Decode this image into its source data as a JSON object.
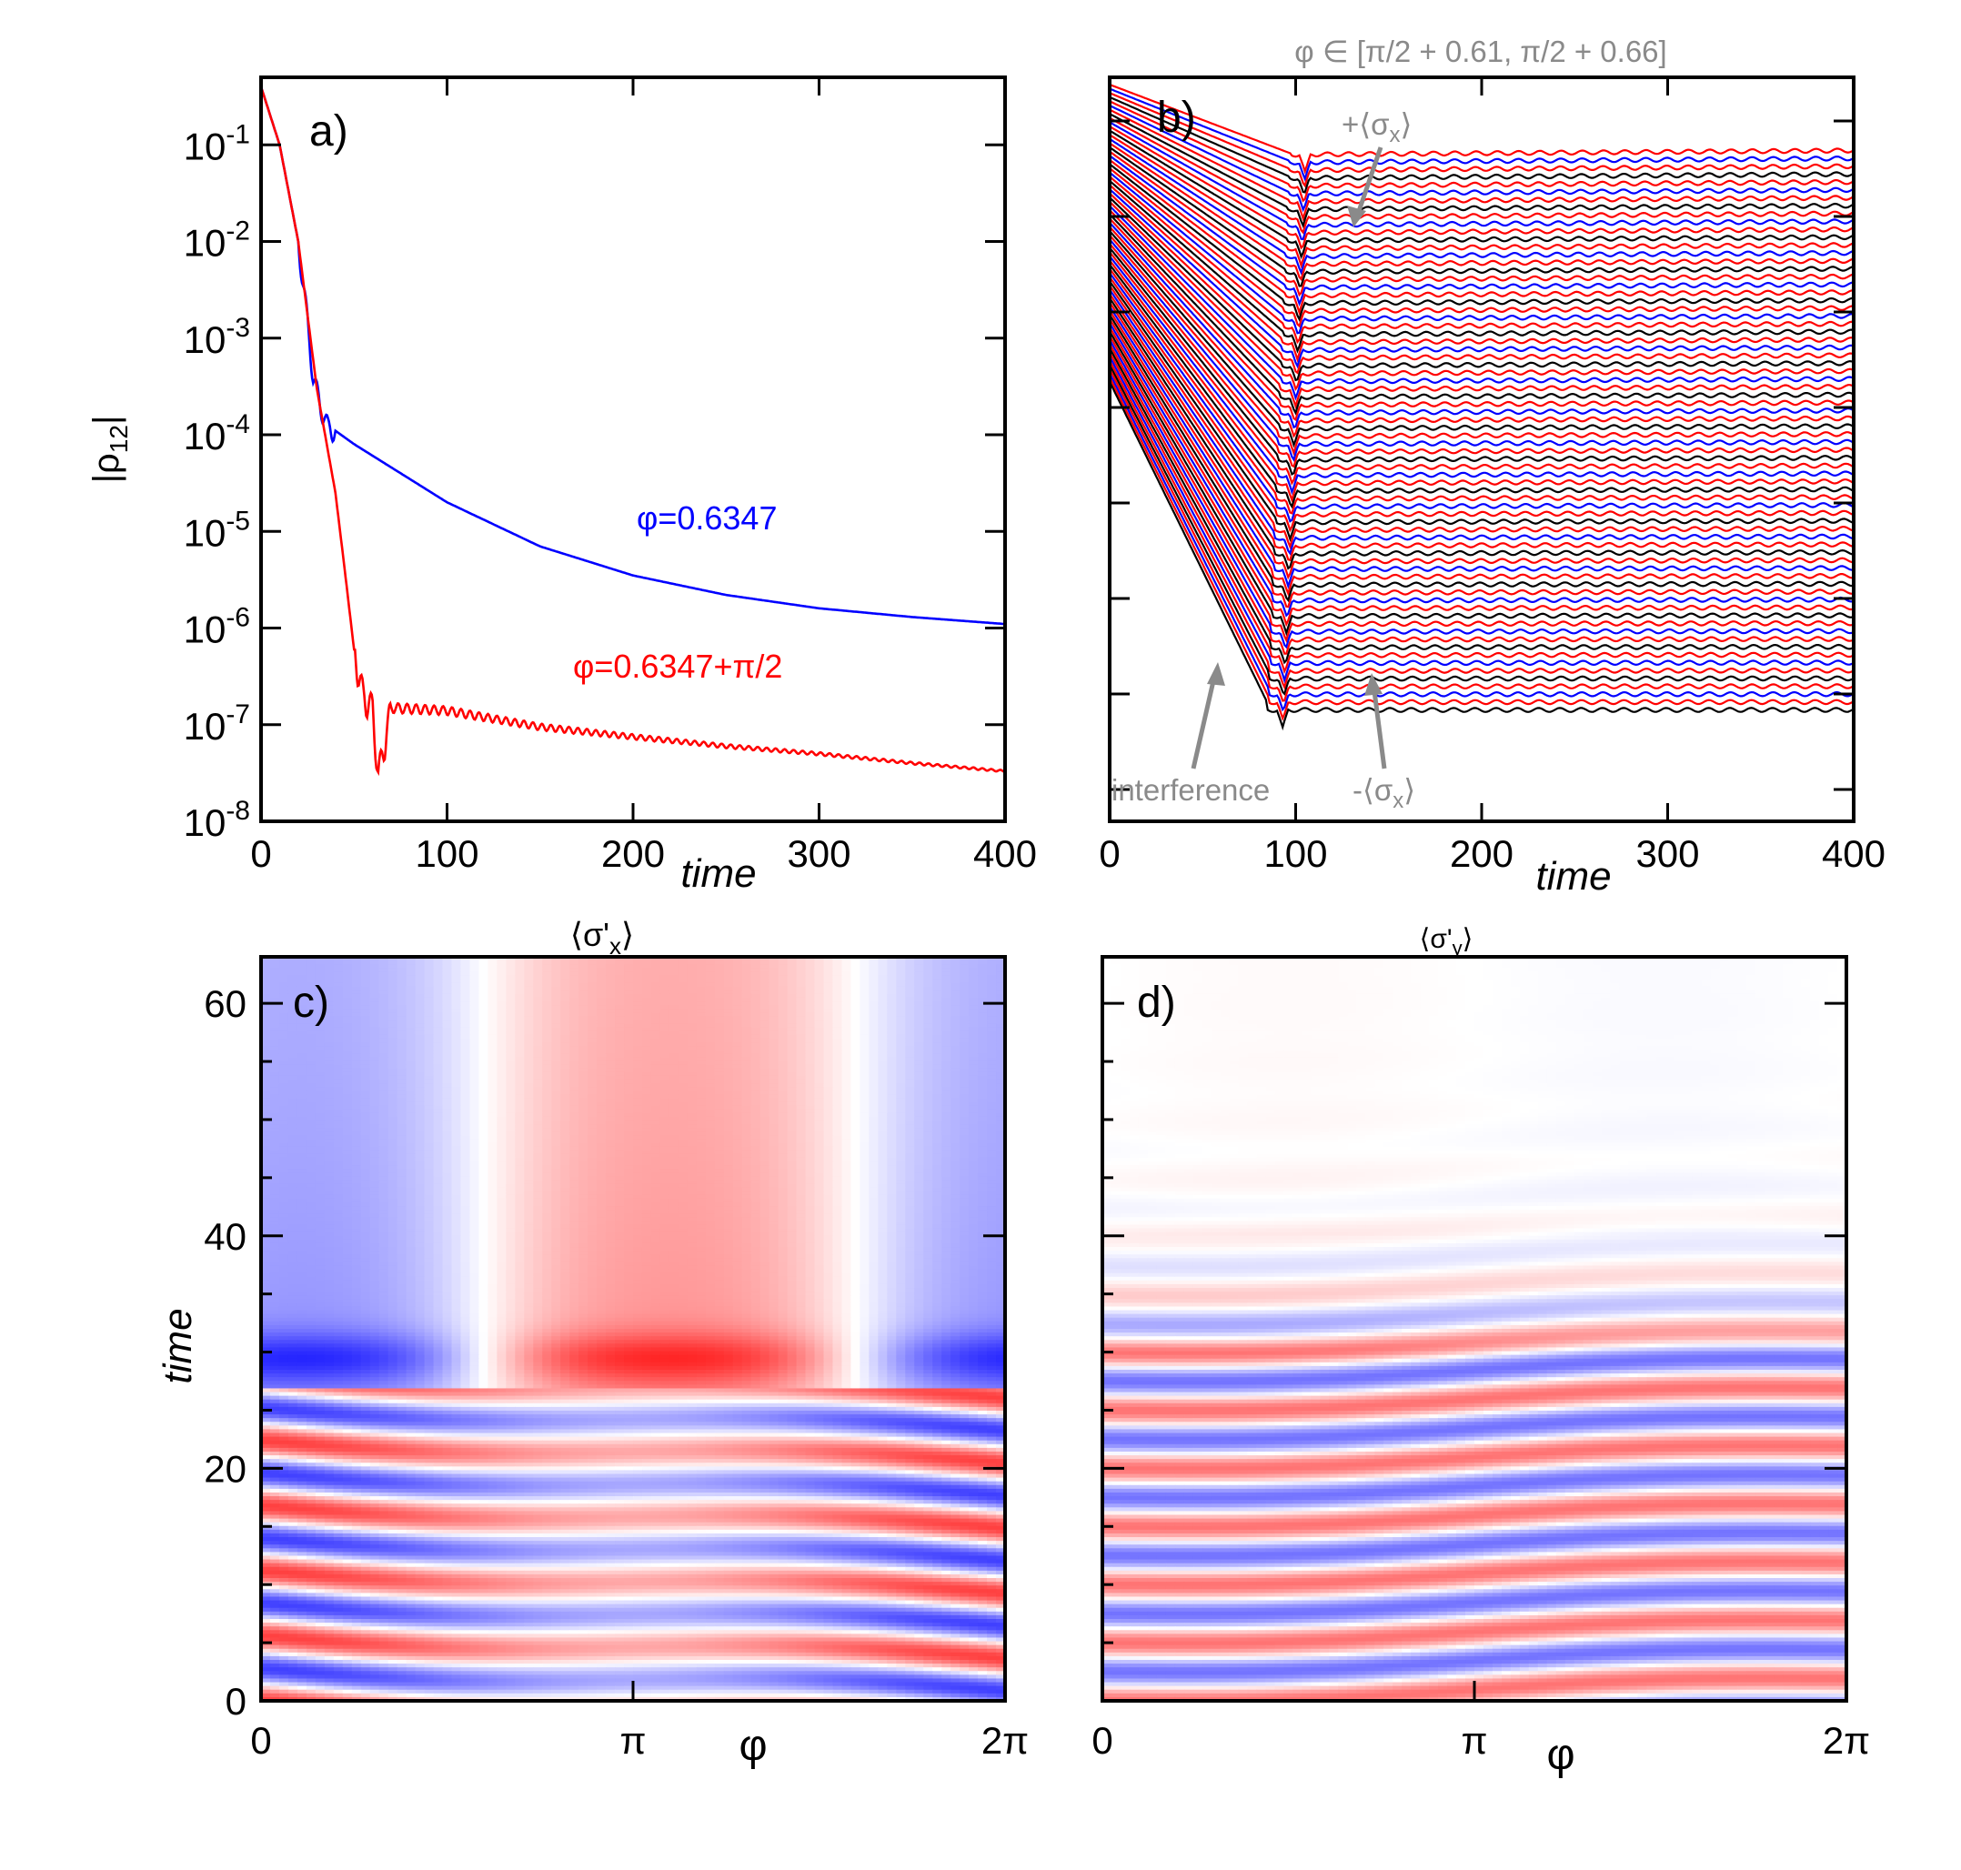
{
  "chart_data": [
    {
      "panel": "a)",
      "type": "line",
      "yscale": "log",
      "xlabel": "time",
      "ylabel": "|ρ",
      "ylabel_sub": "12",
      "xlim": [
        0,
        400
      ],
      "ylim": [
        1e-08,
        0.5
      ],
      "xticks": [
        "0",
        "100",
        "200",
        "300",
        "400"
      ],
      "yticks": [
        {
          "base": "10",
          "exp": "-1"
        },
        {
          "base": "10",
          "exp": "-2"
        },
        {
          "base": "10",
          "exp": "-3"
        },
        {
          "base": "10",
          "exp": "-4"
        },
        {
          "base": "10",
          "exp": "-5"
        },
        {
          "base": "10",
          "exp": "-6"
        },
        {
          "base": "10",
          "exp": "-7"
        },
        {
          "base": "10",
          "exp": "-8"
        }
      ],
      "series": [
        {
          "name": "φ=0.6347",
          "color": "#0000ff",
          "x": [
            0,
            10,
            20,
            25,
            28,
            32,
            36,
            40,
            50,
            75,
            100,
            150,
            200,
            250,
            300,
            350,
            400
          ],
          "y": [
            0.4,
            0.1,
            0.01,
            0.0015,
            0.0004,
            0.0002,
            0.00012,
            0.00011,
            8e-05,
            4e-05,
            2e-05,
            7e-06,
            3.5e-06,
            2.2e-06,
            1.6e-06,
            1.3e-06,
            1.1e-06
          ]
        },
        {
          "name": "φ=0.6347+π/2",
          "color": "#ff0000",
          "x": [
            0,
            10,
            20,
            30,
            40,
            45,
            50,
            55,
            60,
            63,
            70,
            100,
            150,
            200,
            250,
            300,
            350,
            400
          ],
          "y": [
            0.4,
            0.1,
            0.01,
            0.0003,
            2.5e-05,
            4e-06,
            6e-07,
            2e-07,
            1.5e-07,
            3e-08,
            1.5e-07,
            1.4e-07,
            9.5e-08,
            7.5e-08,
            6e-08,
            5e-08,
            4e-08,
            3.3e-08
          ]
        }
      ]
    },
    {
      "panel": "b)",
      "type": "line",
      "title": "φ ∈ [π/2 + 0.61, π/2 + 0.66]",
      "xlabel": "time",
      "xlim": [
        0,
        400
      ],
      "xticks": [
        "0",
        "100",
        "200",
        "300",
        "400"
      ],
      "n_curves": 72,
      "colors": [
        "#ff0000",
        "#0000ff",
        "#ff0000",
        "#000000"
      ],
      "annotations": {
        "plus": {
          "sign": "+⟨σ",
          "sub": "x",
          "close": "⟩"
        },
        "minus": {
          "sign": "-⟨σ",
          "sub": "x",
          "close": "⟩"
        },
        "interference": "interference"
      }
    },
    {
      "panel": "c)",
      "type": "heatmap",
      "title": {
        "pre": "⟨σ'",
        "sub": "x",
        "post": "⟩"
      },
      "xlabel": "φ",
      "ylabel": "time",
      "xlim": [
        0,
        6.2832
      ],
      "ylim": [
        0,
        64
      ],
      "xticks": [
        "0",
        "π",
        "2π"
      ],
      "yticks": [
        "0",
        "20",
        "40",
        "60"
      ],
      "colormap": [
        "#0000ff",
        "#ffffff",
        "#ff0000"
      ]
    },
    {
      "panel": "d)",
      "type": "heatmap",
      "title": {
        "pre": "⟨σ'",
        "sub": "y",
        "post": "⟩"
      },
      "xlabel": "φ",
      "xlim": [
        0,
        6.2832
      ],
      "ylim": [
        0,
        64
      ],
      "xticks": [
        "0",
        "π",
        "2π"
      ],
      "colormap": [
        "#0000ff",
        "#ffffff",
        "#ff0000"
      ]
    }
  ]
}
